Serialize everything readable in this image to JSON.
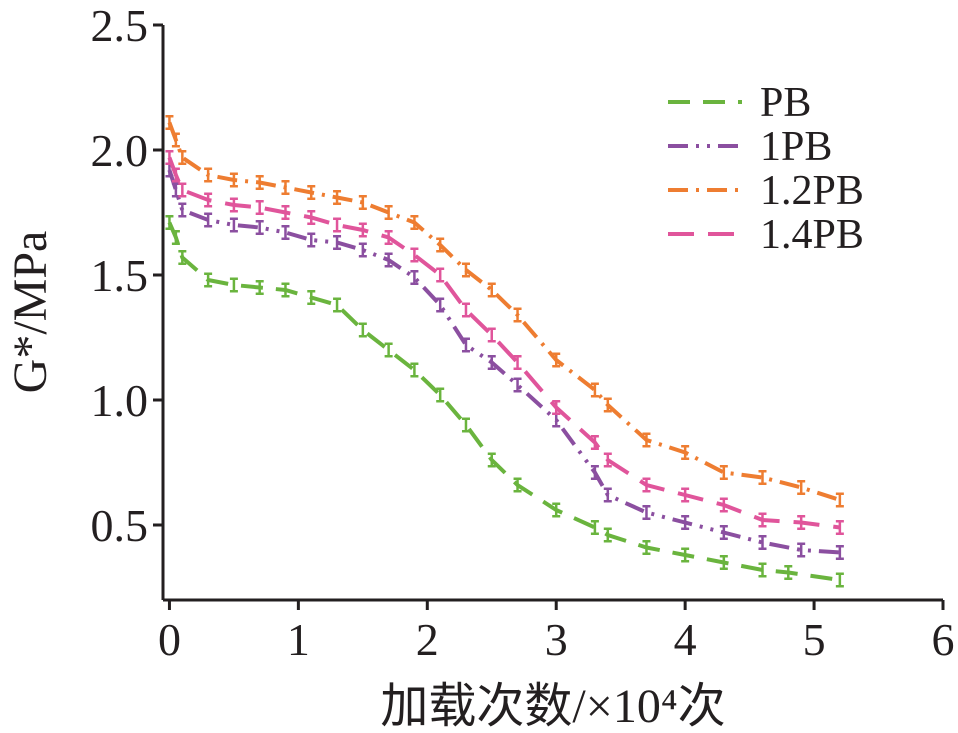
{
  "chart_data": {
    "type": "line",
    "xlabel": "加载次数/×10⁴次",
    "ylabel": "G*/MPa",
    "xlim": [
      -0.05,
      6
    ],
    "ylim": [
      0.2,
      2.5
    ],
    "xticks": [
      "0",
      "1",
      "2",
      "3",
      "4",
      "5",
      "6"
    ],
    "yticks": [
      "0.5",
      "1.0",
      "1.5",
      "2.0",
      "2.5"
    ],
    "grid": false,
    "legend_position": "top-right",
    "error_bar": 0.025,
    "series": [
      {
        "name": "PB",
        "color": "#6ab43e",
        "dash": "dash",
        "x": [
          0,
          0.05,
          0.1,
          0.3,
          0.5,
          0.7,
          0.9,
          1.1,
          1.3,
          1.5,
          1.7,
          1.9,
          2.1,
          2.3,
          2.5,
          2.7,
          3.0,
          3.3,
          3.4,
          3.7,
          4.0,
          4.3,
          4.6,
          4.8,
          5.2
        ],
        "y": [
          1.71,
          1.65,
          1.57,
          1.48,
          1.46,
          1.45,
          1.44,
          1.41,
          1.38,
          1.28,
          1.2,
          1.12,
          1.02,
          0.9,
          0.76,
          0.66,
          0.56,
          0.49,
          0.46,
          0.41,
          0.38,
          0.35,
          0.32,
          0.31,
          0.28
        ]
      },
      {
        "name": "1PB",
        "color": "#8b4fa0",
        "dash": "dashdotdot",
        "x": [
          0,
          0.05,
          0.1,
          0.3,
          0.5,
          0.7,
          0.9,
          1.1,
          1.3,
          1.5,
          1.7,
          1.9,
          2.1,
          2.3,
          2.5,
          2.7,
          3.0,
          3.3,
          3.4,
          3.7,
          4.0,
          4.3,
          4.6,
          4.9,
          5.2
        ],
        "y": [
          1.92,
          1.84,
          1.76,
          1.72,
          1.7,
          1.69,
          1.67,
          1.64,
          1.63,
          1.6,
          1.56,
          1.49,
          1.38,
          1.22,
          1.15,
          1.06,
          0.92,
          0.71,
          0.62,
          0.55,
          0.51,
          0.47,
          0.43,
          0.4,
          0.39
        ]
      },
      {
        "name": "1.2PB",
        "color": "#ee7d31",
        "dash": "dashdot",
        "x": [
          0,
          0.05,
          0.1,
          0.3,
          0.5,
          0.7,
          0.9,
          1.1,
          1.3,
          1.5,
          1.7,
          1.9,
          2.1,
          2.3,
          2.5,
          2.7,
          3.0,
          3.3,
          3.4,
          3.7,
          4.0,
          4.3,
          4.6,
          4.9,
          5.2
        ],
        "y": [
          2.11,
          2.04,
          1.97,
          1.9,
          1.88,
          1.87,
          1.85,
          1.83,
          1.81,
          1.79,
          1.75,
          1.71,
          1.62,
          1.52,
          1.44,
          1.34,
          1.16,
          1.04,
          0.98,
          0.84,
          0.79,
          0.71,
          0.69,
          0.65,
          0.6
        ]
      },
      {
        "name": "1.4PB",
        "color": "#e0559b",
        "dash": "longdash",
        "x": [
          0,
          0.05,
          0.1,
          0.3,
          0.5,
          0.7,
          0.9,
          1.1,
          1.3,
          1.5,
          1.7,
          1.9,
          2.1,
          2.3,
          2.5,
          2.7,
          3.0,
          3.3,
          3.4,
          3.7,
          4.0,
          4.3,
          4.6,
          4.9,
          5.2
        ],
        "y": [
          1.97,
          1.9,
          1.84,
          1.8,
          1.78,
          1.77,
          1.75,
          1.73,
          1.7,
          1.68,
          1.65,
          1.58,
          1.5,
          1.36,
          1.26,
          1.15,
          0.97,
          0.83,
          0.76,
          0.66,
          0.62,
          0.58,
          0.52,
          0.51,
          0.49
        ]
      }
    ]
  }
}
